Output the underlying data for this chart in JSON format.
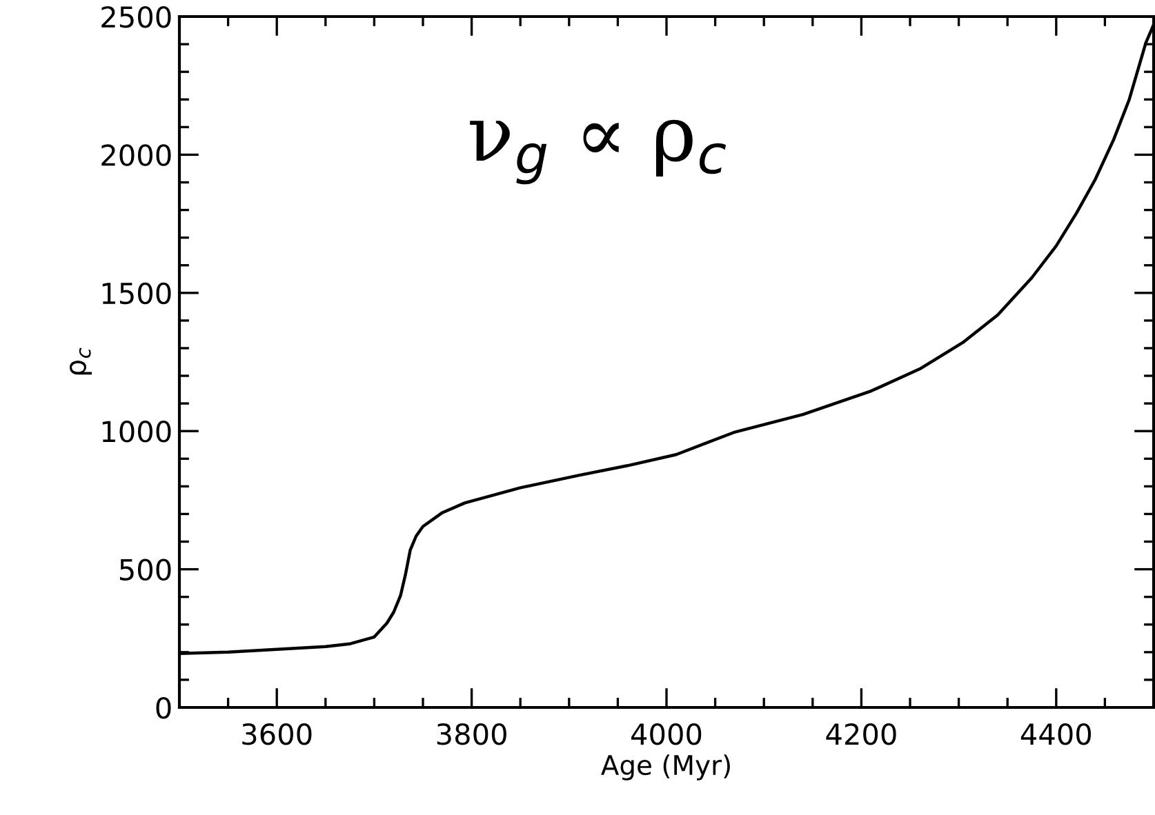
{
  "chart_data": {
    "type": "line",
    "xlabel": "Age (Myr)",
    "ylabel": "ρ$_{c}$",
    "annotations": [
      "ν$_{g}$ ∝ ρ$_{c}$"
    ],
    "x": [
      3500,
      3550,
      3600,
      3650,
      3675,
      3700,
      3713,
      3720,
      3727,
      3732,
      3737,
      3743,
      3750,
      3770,
      3793,
      3850,
      3910,
      3960,
      4010,
      4069,
      4140,
      4210,
      4260,
      4304,
      4340,
      4375,
      4400,
      4421,
      4440,
      4459,
      4475,
      4492,
      4500
    ],
    "series": [
      {
        "color": "#000000",
        "values": [
          195,
          200,
          210,
          220,
          230,
          255,
          305,
          345,
          405,
          480,
          570,
          620,
          655,
          705,
          740,
          795,
          840,
          875,
          915,
          995,
          1060,
          1145,
          1225,
          1320,
          1420,
          1555,
          1670,
          1790,
          1910,
          2055,
          2200,
          2405,
          2470
        ]
      }
    ],
    "xlim": [
      3500,
      4500
    ],
    "ylim": [
      0,
      2500
    ],
    "xticks": [
      3600,
      3800,
      4000,
      4200,
      4400
    ],
    "yticks": [
      0,
      500,
      1000,
      1500,
      2000,
      2500
    ],
    "grid": false,
    "legend": false,
    "line_style": "solid",
    "marker": "none"
  }
}
